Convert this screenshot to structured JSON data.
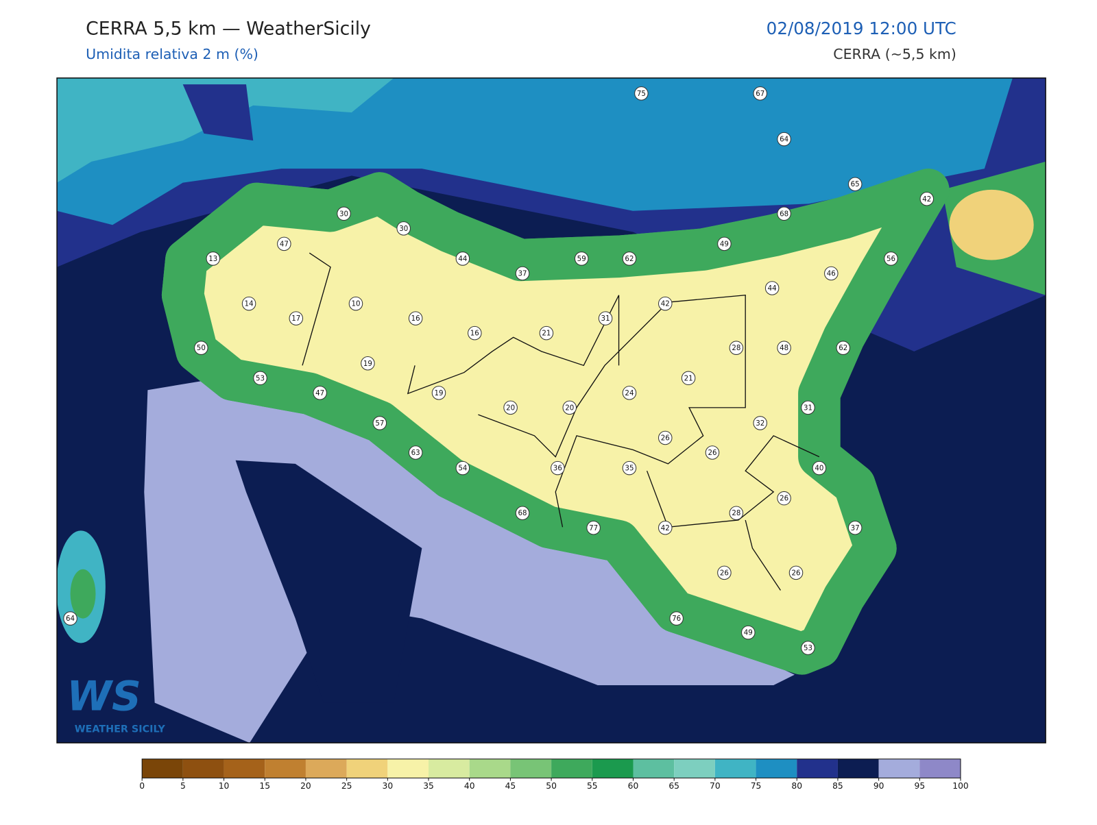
{
  "header": {
    "title": "CERRA 5,5 km — WeatherSicily",
    "subtitle": "Umidita relativa 2 m (%)",
    "datetime": "02/08/2019 12:00 UTC",
    "model": "CERRA (~5,5 km)"
  },
  "logo": {
    "mark": "WS",
    "name": "WEATHER SICILY"
  },
  "stations": [
    75,
    67,
    64,
    65,
    42,
    68,
    30,
    30,
    47,
    49,
    13,
    44,
    59,
    62,
    56,
    37,
    46,
    44,
    14,
    10,
    42,
    17,
    16,
    31,
    16,
    21,
    28,
    48,
    62,
    50,
    19,
    53,
    21,
    47,
    19,
    24,
    20,
    20,
    31,
    57,
    32,
    26,
    26,
    63,
    54,
    36,
    35,
    40,
    26,
    68,
    28,
    77,
    42,
    37,
    26,
    26,
    64,
    76,
    49,
    53
  ],
  "colorbar": {
    "ticks": [
      0,
      5,
      10,
      15,
      20,
      25,
      30,
      35,
      40,
      45,
      50,
      55,
      60,
      65,
      70,
      75,
      80,
      85,
      90,
      95,
      100
    ],
    "colors": [
      "#7a4508",
      "#8e5010",
      "#a5621a",
      "#c08030",
      "#dca95a",
      "#f0d27a",
      "#f7f2a8",
      "#d8eba0",
      "#a9d98a",
      "#78c476",
      "#3ea95c",
      "#1b9a4e",
      "#5dbfa0",
      "#7dcfbf",
      "#40b4c4",
      "#1e8fc2",
      "#22318c",
      "#0c1d52",
      "#a4acdc",
      "#8e88c8"
    ]
  }
}
